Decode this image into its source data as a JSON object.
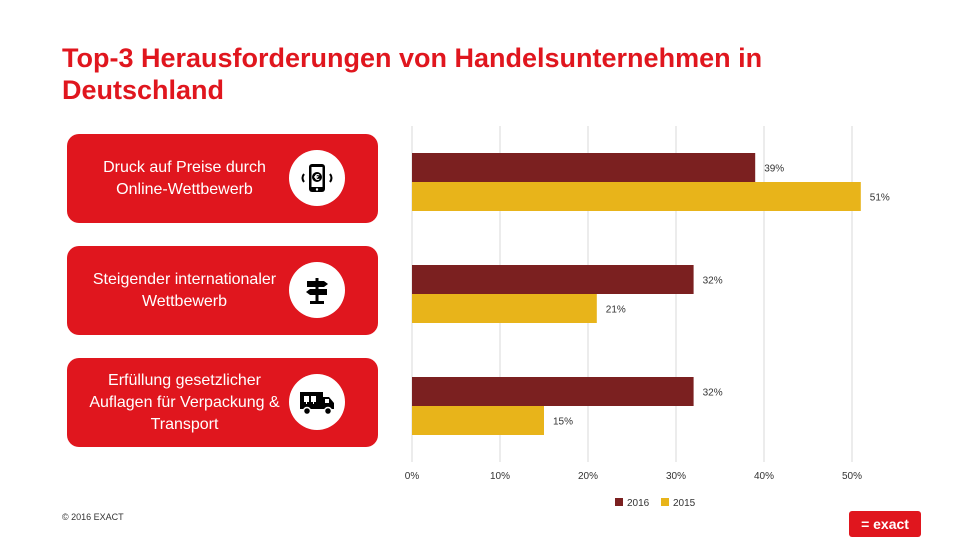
{
  "title": "Top-3 Herausforderungen von Handelsunternehmen in Deutschland",
  "categories_panel": [
    {
      "label": "Druck auf Preise durch Online-Wettbewerb",
      "icon": "smartphone-euro-icon"
    },
    {
      "label": "Steigender internationaler Wettbewerb",
      "icon": "signpost-icon"
    },
    {
      "label": "Erfüllung gesetzlicher Auflagen für Verpackung & Transport",
      "icon": "delivery-truck-icon"
    }
  ],
  "chart_data": {
    "type": "bar",
    "orientation": "horizontal",
    "categories": [
      "Druck auf Preise durch Online-Wettbewerb",
      "Steigender internationaler Wettbewerb",
      "Erfüllung gesetzlicher Auflagen für Verpackung & Transport"
    ],
    "series": [
      {
        "name": "2016",
        "values": [
          39,
          32,
          32
        ],
        "labels": [
          "39%",
          "32%",
          "32%"
        ],
        "color": "#7b2020"
      },
      {
        "name": "2015",
        "values": [
          51,
          21,
          15
        ],
        "labels": [
          "51%",
          "21%",
          "15%"
        ],
        "color": "#e8b41a"
      }
    ],
    "xlim": [
      0,
      50
    ],
    "xticks": [
      "0%",
      "10%",
      "20%",
      "30%",
      "40%",
      "50%"
    ],
    "grid": true,
    "legend": "bottom"
  },
  "footer": {
    "copyright": "© 2016 EXACT"
  },
  "logo": {
    "text": "= exact"
  },
  "colors": {
    "accent": "#e0161e",
    "series_2016": "#7b2020",
    "series_2015": "#e8b41a",
    "grid": "#d9d9d9"
  }
}
